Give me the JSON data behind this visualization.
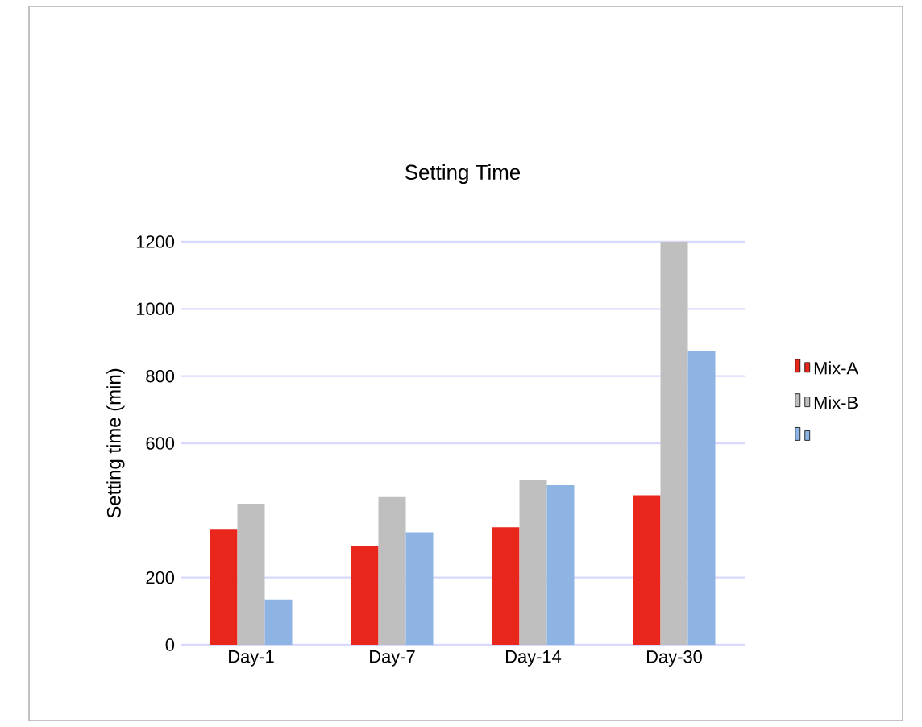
{
  "chart_data": {
    "type": "bar",
    "title": "Setting Time",
    "ylabel": "Setting time (min)",
    "categories": [
      "Day-1",
      "Day-7",
      "Day-14",
      "Day-30"
    ],
    "series": [
      {
        "name": "Mix-A",
        "color": "#e8261c",
        "values": [
          345,
          295,
          350,
          445
        ]
      },
      {
        "name": "Mix-B",
        "color": "#bfbfbf",
        "values": [
          420,
          440,
          490,
          1200
        ]
      },
      {
        "color": "#8db4e2",
        "values": [
          135,
          335,
          475,
          875
        ]
      }
    ],
    "ylim": [
      0,
      1200
    ],
    "yticks": [
      0,
      200,
      600,
      800,
      1000,
      1200
    ],
    "grid": "y",
    "legend": "right"
  }
}
